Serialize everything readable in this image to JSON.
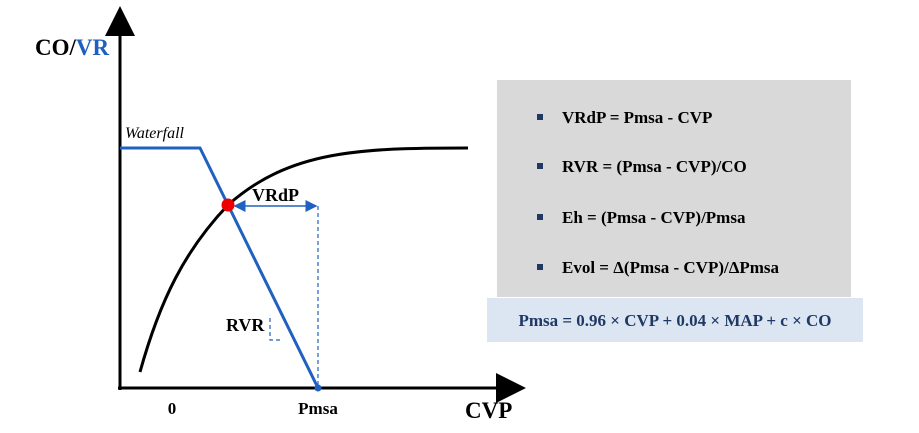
{
  "diagram": {
    "axis": {
      "y_label_prefix": "CO/",
      "y_label_highlight": "VR",
      "x_label": "CVP",
      "x_origin": "0",
      "x_mark": "Pmsa"
    },
    "annotations": {
      "waterfall": "Waterfall",
      "vrdp": "VRdP",
      "rvr": "RVR"
    },
    "definitions": [
      "VRdP = Pmsa - CVP",
      "RVR = (Pmsa - CVP)/CO",
      "Eh = (Pmsa - CVP)/Pmsa",
      "Evol = Δ(Pmsa - CVP)/ΔPmsa"
    ],
    "formula": "Pmsa = 0.96 × CVP + 0.04 × MAP + c × CO"
  }
}
